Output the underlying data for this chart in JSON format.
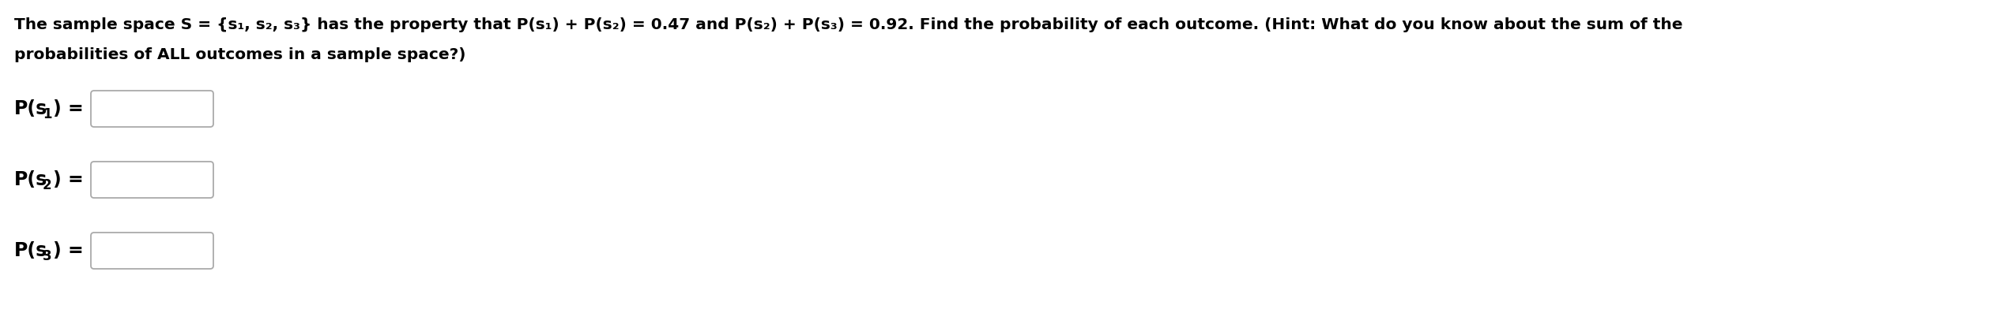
{
  "background_color": "#ffffff",
  "line1": "The sample space S = {s₁, s₂, s₃} has the property that P(s₁) + P(s₂) = 0.47 and P(s₂) + P(s₃) = 0.92. Find the probability of each outcome. (Hint: What do you know about the sum of the",
  "line2": "probabilities of ALL outcomes in a sample space?)",
  "label1_pre": "P(",
  "label1_sub": "s",
  "label1_idx": "1",
  "label1_post": ") =",
  "label2_pre": "P(",
  "label2_sub": "s",
  "label2_idx": "2",
  "label2_post": ") =",
  "label3_pre": "P(",
  "label3_sub": "s",
  "label3_idx": "3",
  "label3_post": ") =",
  "font_size_main": 14.5,
  "font_size_label": 17.0,
  "font_size_sub": 12.0,
  "box_color": "#ffffff",
  "box_edge_color": "#aaaaaa",
  "text_color": "#000000",
  "figsize": [
    25.5,
    4.11
  ],
  "dpi": 100
}
